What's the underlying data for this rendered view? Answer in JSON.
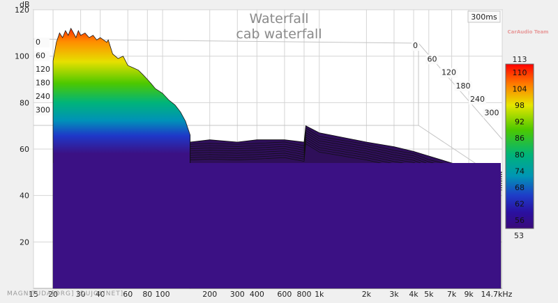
{
  "chart_data": {
    "type": "area",
    "title": "Waterfall",
    "subtitle": "cab waterfall",
    "time_label": "300ms",
    "watermark": "",
    "watermark_sub": "CarAudio Team",
    "footer_text": "MAGNITUDA[ORG] [DUJOLINET]",
    "y_axis": {
      "unit": "dB",
      "ticks": [
        20,
        40,
        60,
        80,
        100,
        120
      ],
      "range": [
        0,
        120
      ]
    },
    "x_axis": {
      "unit": "kHz",
      "scale": "log",
      "range": [
        15,
        14700
      ],
      "ticks": [
        {
          "v": 15,
          "label": "15"
        },
        {
          "v": 20,
          "label": "20"
        },
        {
          "v": 30,
          "label": "30"
        },
        {
          "v": 40,
          "label": "40"
        },
        {
          "v": 60,
          "label": "60"
        },
        {
          "v": 80,
          "label": "80"
        },
        {
          "v": 100,
          "label": "100"
        },
        {
          "v": 200,
          "label": "200"
        },
        {
          "v": 300,
          "label": "300"
        },
        {
          "v": 400,
          "label": "400"
        },
        {
          "v": 600,
          "label": "600"
        },
        {
          "v": 800,
          "label": "800"
        },
        {
          "v": 1000,
          "label": "1k"
        },
        {
          "v": 2000,
          "label": "2k"
        },
        {
          "v": 3000,
          "label": "3k"
        },
        {
          "v": 4000,
          "label": "4k"
        },
        {
          "v": 5000,
          "label": "5k"
        },
        {
          "v": 7000,
          "label": "7k"
        },
        {
          "v": 9000,
          "label": "9k"
        },
        {
          "v": 14700,
          "label": "14.7kHz"
        }
      ]
    },
    "time_axis_left": [
      "0",
      "60",
      "120",
      "180",
      "240",
      "300"
    ],
    "time_axis_right": [
      "0",
      "60",
      "120",
      "180",
      "240",
      "300"
    ],
    "color_scale": {
      "top_label": "113",
      "bottom_label": "53",
      "ticks": [
        110,
        104,
        98,
        92,
        86,
        80,
        74,
        68,
        62,
        56
      ],
      "range": [
        53,
        113
      ]
    },
    "series": [
      {
        "values_x": [
          20,
          21,
          22,
          23,
          24,
          25,
          26,
          27,
          28,
          29,
          30,
          32,
          34,
          36,
          38,
          40,
          42,
          44,
          45,
          48,
          52,
          56,
          60,
          65,
          70,
          75,
          80,
          85,
          90,
          95,
          100,
          110,
          120,
          130,
          140,
          150
        ],
        "values_y": [
          98,
          106,
          110,
          108,
          111,
          109,
          112,
          110,
          108,
          111,
          109,
          110,
          108,
          109,
          107,
          108,
          107,
          106,
          107,
          101,
          99,
          100,
          96,
          95,
          94,
          92,
          90,
          88,
          86,
          85,
          84,
          81,
          79,
          76,
          72,
          66
        ]
      },
      {
        "values_x": [
          150,
          200,
          300,
          400,
          600,
          800,
          820,
          1000,
          2000,
          3000,
          4000,
          5000,
          7000,
          9000,
          14700
        ],
        "values_y": [
          63,
          64,
          63,
          64,
          64,
          63,
          70,
          67,
          63,
          61,
          59,
          57,
          54,
          52,
          50
        ]
      }
    ]
  }
}
